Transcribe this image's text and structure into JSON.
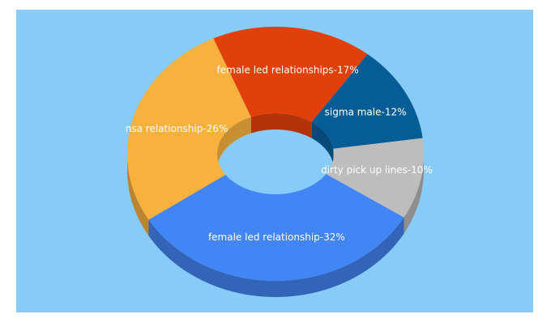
{
  "chart_data": {
    "type": "donut3d",
    "values": [
      32,
      26,
      17,
      12,
      10
    ],
    "value_labels": [
      "female led relationship-32%",
      "nsa relationship-26%",
      "female led relationships-17%",
      "sigma male-12%",
      "dirty pick up lines-10%"
    ],
    "colors": [
      "#4285f4",
      "#f9b13e",
      "#e2400a",
      "#065d96",
      "#bdbdbd"
    ],
    "background": "#87cbf9"
  }
}
